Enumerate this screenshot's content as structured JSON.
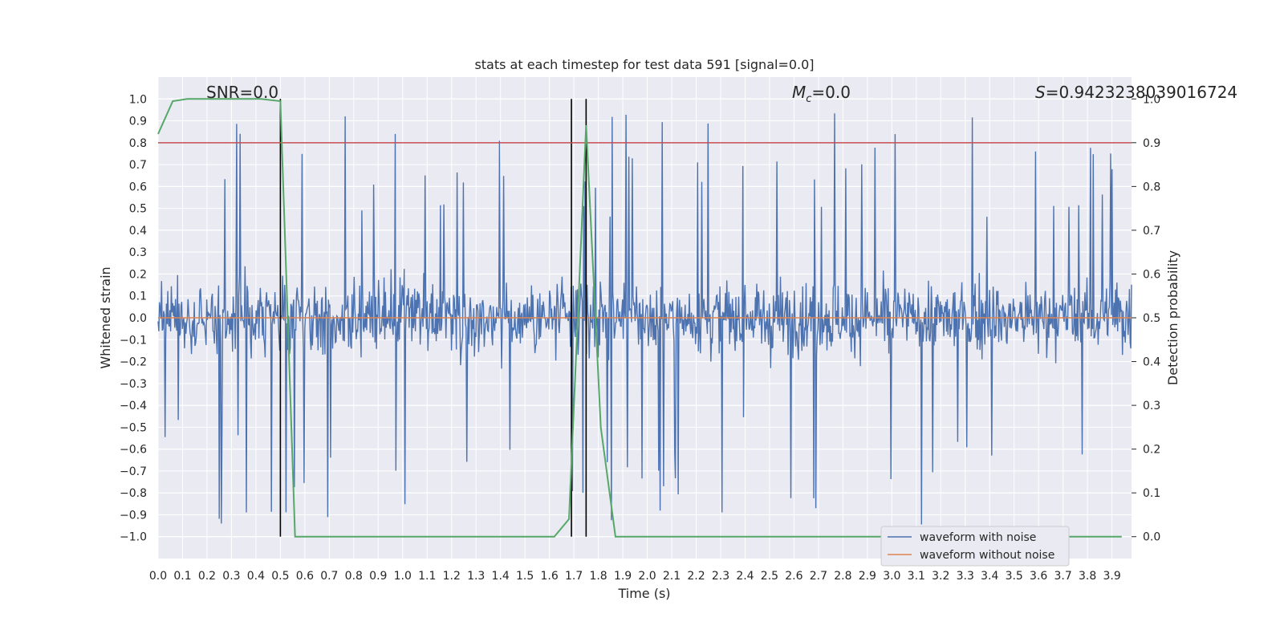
{
  "chart_data": {
    "type": "line",
    "title": "stats at each timestep for test data 591 [signal=0.0]",
    "xlabel": "Time (s)",
    "ylabel": "Whitened strain",
    "y2label": "Detection probability",
    "xlim": [
      0.0,
      3.98
    ],
    "ylim": [
      -1.1,
      1.1
    ],
    "y2lim": [
      -0.05,
      1.05
    ],
    "x_ticks": [
      "0.0",
      "0.1",
      "0.2",
      "0.3",
      "0.4",
      "0.5",
      "0.6",
      "0.7",
      "0.8",
      "0.9",
      "1.0",
      "1.1",
      "1.2",
      "1.3",
      "1.4",
      "1.5",
      "1.6",
      "1.7",
      "1.8",
      "1.9",
      "2.0",
      "2.1",
      "2.2",
      "2.3",
      "2.4",
      "2.5",
      "2.6",
      "2.7",
      "2.8",
      "2.9",
      "3.0",
      "3.1",
      "3.2",
      "3.3",
      "3.4",
      "3.5",
      "3.6",
      "3.7",
      "3.8",
      "3.9"
    ],
    "y_ticks": [
      "1.0",
      "0.9",
      "0.8",
      "0.7",
      "0.6",
      "0.5",
      "0.4",
      "0.3",
      "0.2",
      "0.1",
      "0.0",
      "−0.1",
      "−0.2",
      "−0.3",
      "−0.4",
      "−0.5",
      "−0.6",
      "−0.7",
      "−0.8",
      "−0.9",
      "−1.0"
    ],
    "y2_ticks": [
      "1.0",
      "0.9",
      "0.8",
      "0.7",
      "0.6",
      "0.5",
      "0.4",
      "0.3",
      "0.2",
      "0.1",
      "0.0"
    ],
    "grid": true,
    "legend_position": "bottom-right",
    "series": [
      {
        "name": "waveform with noise",
        "color": "#4c72b0",
        "style": "noise",
        "x_range": [
          0.0,
          3.98
        ],
        "amplitude_band": [
          -0.3,
          0.3
        ],
        "extremes": [
          -1.0,
          1.0
        ]
      },
      {
        "name": "waveform without noise",
        "color": "#dd8452",
        "x": [
          0.0,
          3.98
        ],
        "y": [
          0.0,
          0.0
        ]
      },
      {
        "name": "",
        "color": "#55a868",
        "axis": "right",
        "x": [
          0.0,
          0.06,
          0.12,
          0.18,
          0.24,
          0.3,
          0.36,
          0.42,
          0.5,
          0.56,
          0.62,
          0.7,
          0.8,
          0.9,
          1.0,
          1.2,
          1.4,
          1.6,
          1.62,
          1.68,
          1.75,
          1.81,
          1.87,
          2.0,
          2.5,
          3.0,
          3.5,
          3.94
        ],
        "y": [
          0.92,
          0.995,
          1.0,
          1.0,
          1.0,
          1.0,
          1.0,
          1.0,
          0.995,
          0.0,
          0.0,
          0.0,
          0.0,
          0.0,
          0.0,
          0.0,
          0.0,
          0.0,
          0.0,
          0.04,
          0.94,
          0.25,
          0.0,
          0.0,
          0.0,
          0.0,
          0.0,
          0.0
        ]
      }
    ],
    "threshold_line": {
      "value": 0.9,
      "axis": "right",
      "color": "#c44e52"
    },
    "vertical_lines": [
      0.5,
      1.69,
      1.75
    ],
    "annotations": {
      "snr": "SNR=0.0",
      "mc_symbol": "M",
      "mc_sub": "c",
      "mc_value": "=0.0",
      "s_symbol": "S",
      "s_value": "=0.9423238039016724"
    }
  }
}
